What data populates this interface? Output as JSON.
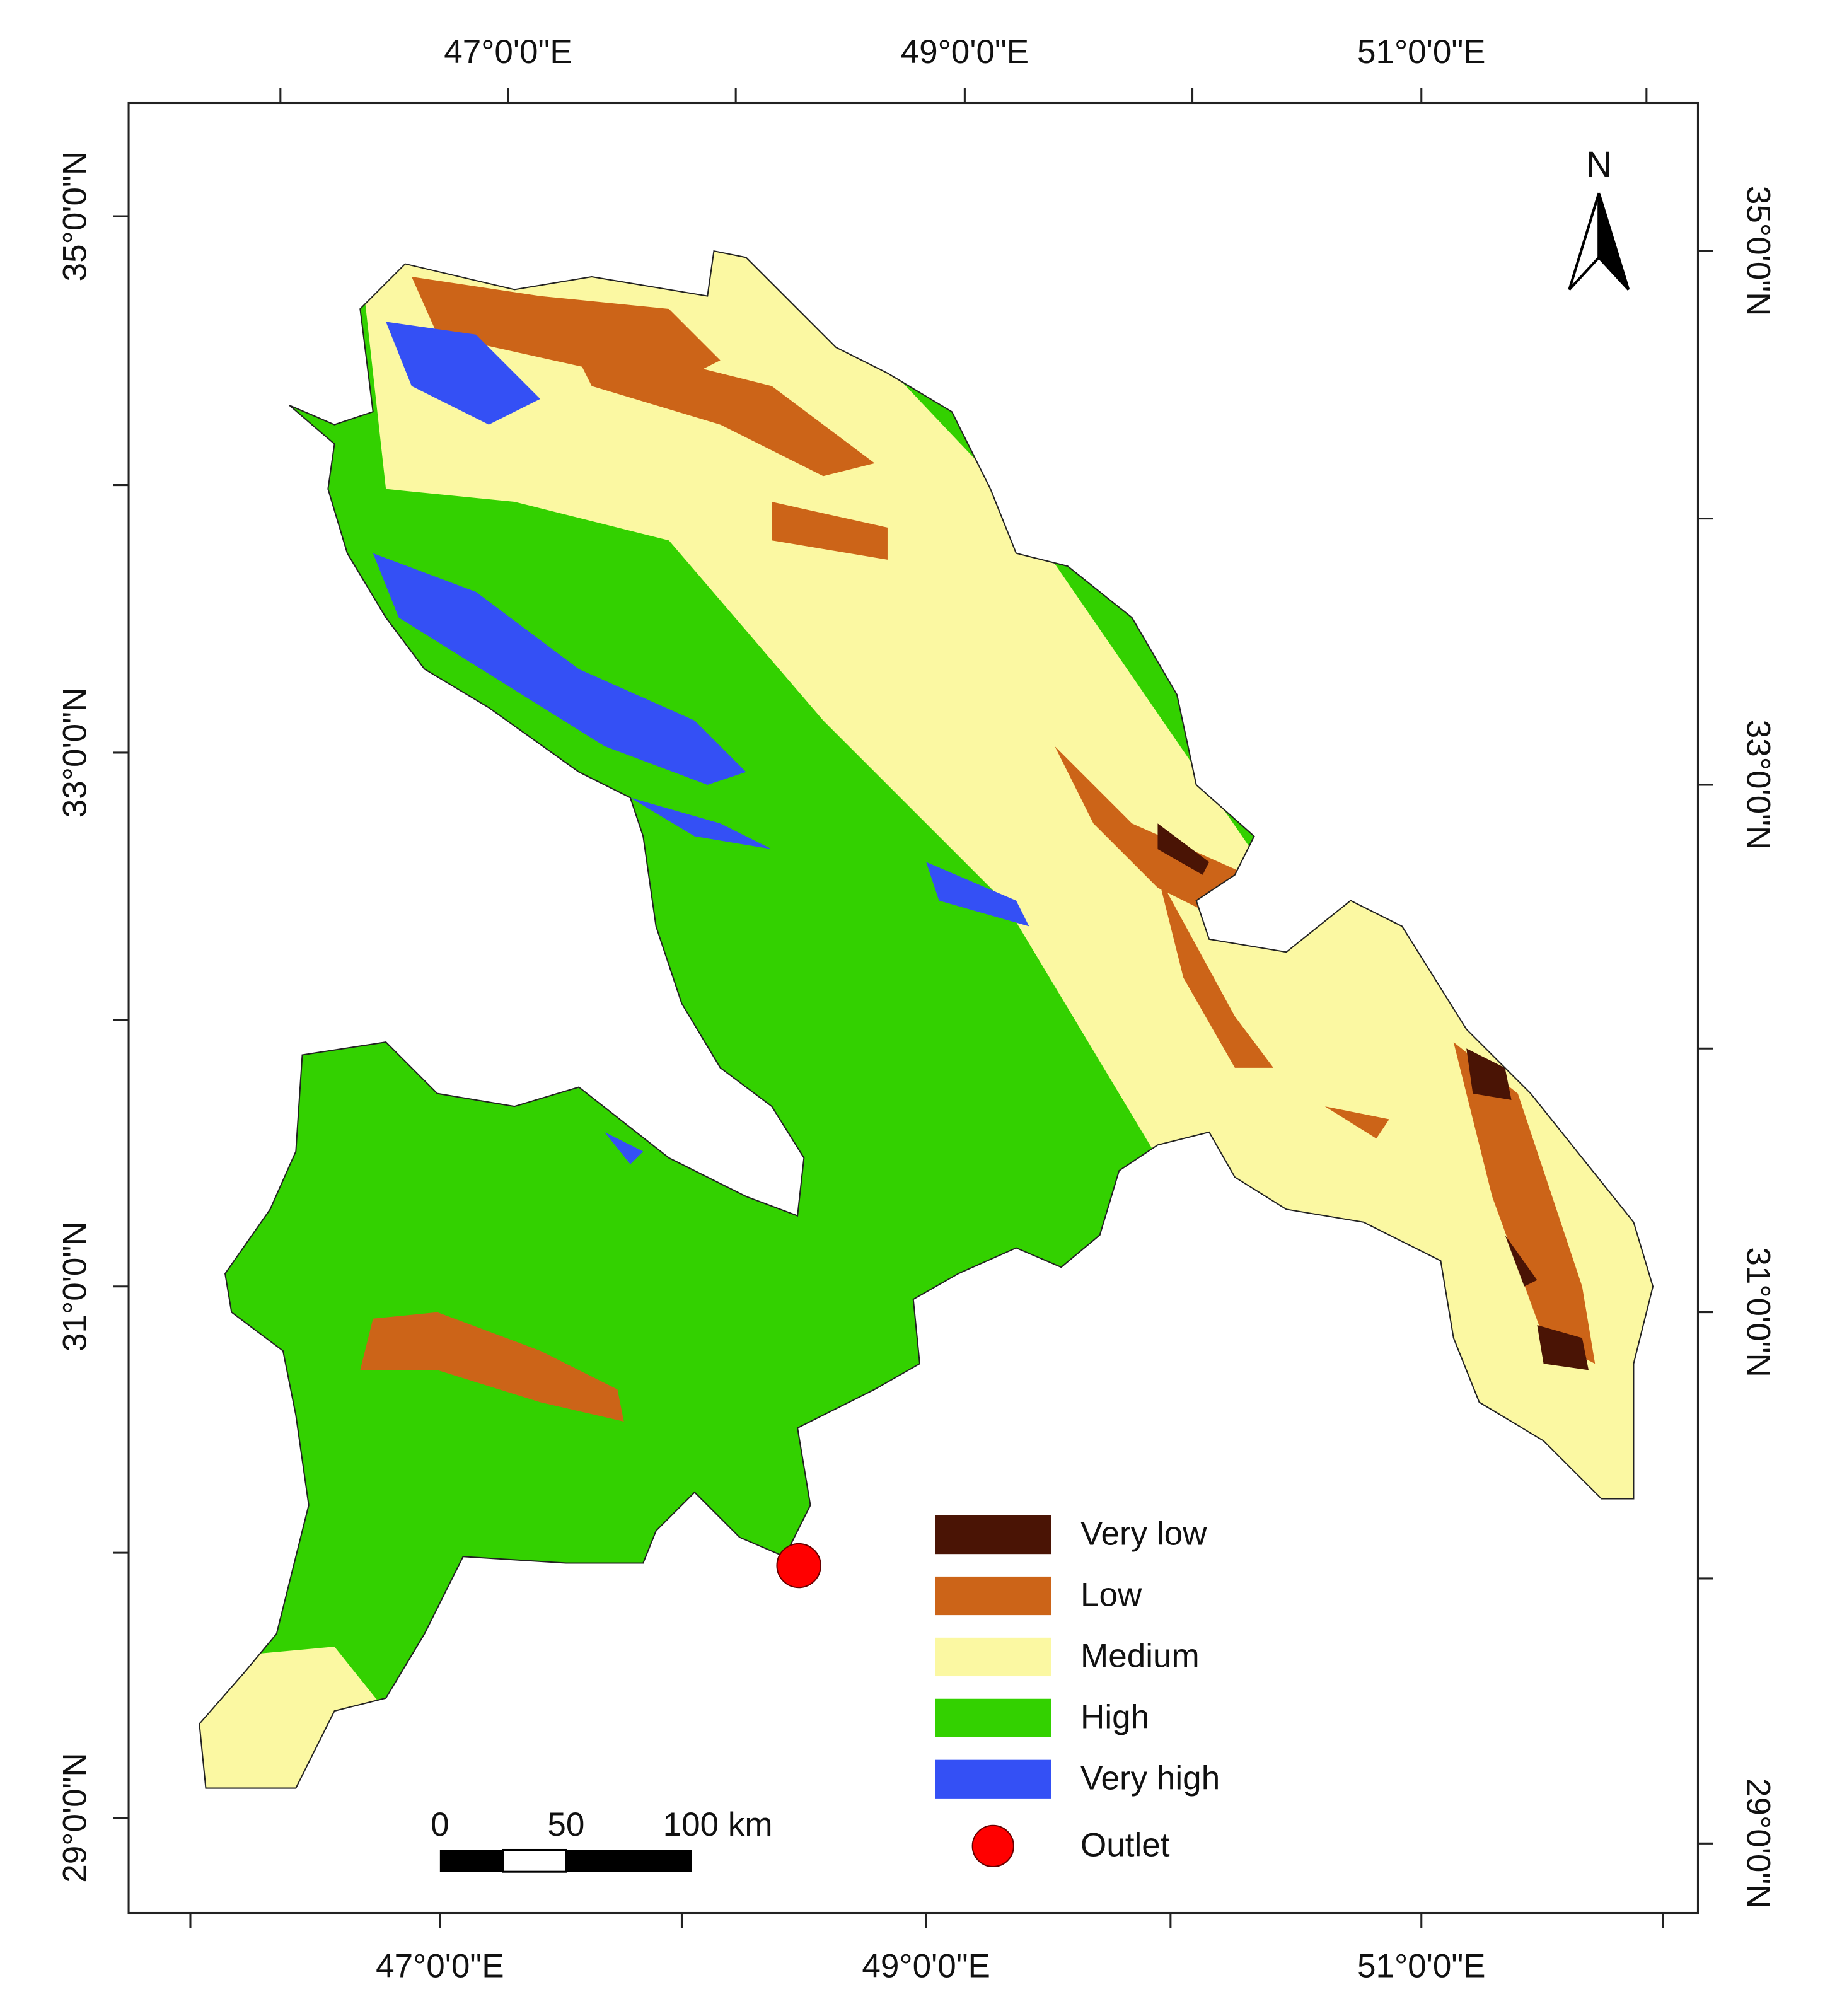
{
  "map": {
    "top_axis": [
      "47°0'0\"E",
      "49°0'0\"E",
      "51°0'0\"E"
    ],
    "bottom_axis": [
      "47°0'0\"E",
      "49°0'0\"E",
      "51°0'0\"E"
    ],
    "left_axis": [
      "35°0'0\"N",
      "33°0'0\"N",
      "31°0'0\"N",
      "29°0'0\"N"
    ],
    "right_axis": [
      "35°0'0\"N",
      "33°0'0\"N",
      "31°0'0\"N",
      "29°0'0\"N"
    ],
    "north_arrow": "N",
    "scale_bar": [
      "0",
      "50",
      "100 km"
    ],
    "legend": {
      "items": [
        {
          "label": "Very low",
          "color": "#4a1405"
        },
        {
          "label": "Low",
          "color": "#cc6418"
        },
        {
          "label": "Medium",
          "color": "#fbf8a2"
        },
        {
          "label": "High",
          "color": "#33d100"
        },
        {
          "label": "Very high",
          "color": "#3450f5"
        }
      ],
      "outlet": {
        "label": "Outlet",
        "color": "#ff0000"
      }
    }
  }
}
